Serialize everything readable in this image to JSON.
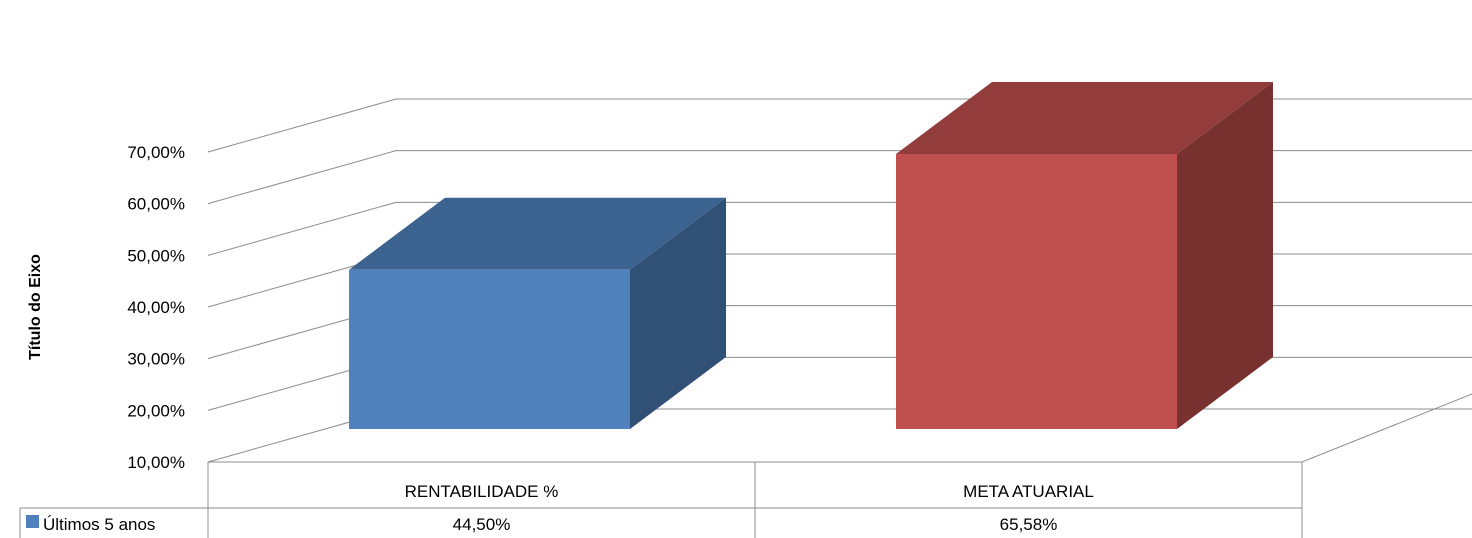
{
  "chart_data": {
    "type": "bar",
    "style": "3d-column-with-data-table",
    "categories": [
      "RENTABILIDADE %",
      "META ATUARIAL"
    ],
    "series": [
      {
        "name": "Últimos 5 anos",
        "values": [
          44.5,
          65.58
        ],
        "color": "#4f81bd"
      }
    ],
    "bar_colors": [
      "#4f81bd",
      "#c0504d"
    ],
    "value_labels": [
      "44,50%",
      "65,58%"
    ],
    "ylabel": "Título do Eixo",
    "ylim": [
      10,
      70
    ],
    "yticks": [
      10,
      20,
      30,
      40,
      50,
      60,
      70
    ],
    "ytick_labels": [
      "10,00%",
      "20,00%",
      "30,00%",
      "40,00%",
      "50,00%",
      "60,00%",
      "70,00%"
    ],
    "grid": true,
    "legend": "data-table-left"
  }
}
